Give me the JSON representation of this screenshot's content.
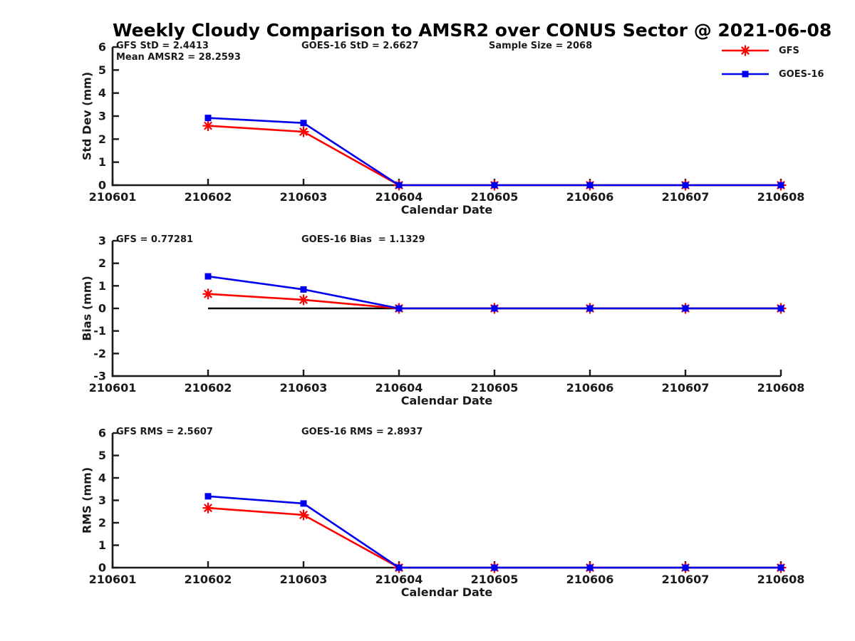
{
  "title": "Weekly Cloudy Comparison to AMSR2 over CONUS Sector @ 2021-06-08",
  "colors": {
    "gfs": "#ff0000",
    "goes16": "#0000ee",
    "axis": "#1a1a1a",
    "zero_line": "#000000"
  },
  "legend": {
    "position": "top-right",
    "items": [
      {
        "label": "GFS",
        "color": "#ff0000",
        "marker": "asterisk"
      },
      {
        "label": "GOES-16",
        "color": "#0000ee",
        "marker": "square"
      }
    ]
  },
  "chart_data": [
    {
      "type": "line",
      "name": "std-dev",
      "title": "",
      "xlabel": "Calendar Date",
      "ylabel": "Std Dev (mm)",
      "ylim": [
        0,
        6
      ],
      "yticks": [
        0,
        1,
        2,
        3,
        4,
        5,
        6
      ],
      "grid": false,
      "categories": [
        "210601",
        "210602",
        "210603",
        "210604",
        "210605",
        "210606",
        "210607",
        "210608"
      ],
      "series": [
        {
          "name": "GFS",
          "color": "#ff0000",
          "marker": "asterisk",
          "x_index": [
            1,
            2,
            3,
            4,
            5,
            6,
            7
          ],
          "values": [
            2.58,
            2.32,
            0,
            0,
            0,
            0,
            0
          ]
        },
        {
          "name": "GOES-16",
          "color": "#0000ee",
          "marker": "square",
          "x_index": [
            1,
            2,
            3,
            4,
            5,
            6,
            7
          ],
          "values": [
            2.92,
            2.7,
            0,
            0,
            0,
            0,
            0
          ]
        }
      ],
      "annotations": [
        {
          "text": "GFS StD = 2.4413",
          "col": 0,
          "row": 0
        },
        {
          "text": "Mean AMSR2 = 28.2593",
          "col": 0,
          "row": 1
        },
        {
          "text": "GOES-16 StD = 2.6627",
          "col": 1,
          "row": 0
        },
        {
          "text": "Sample Size = 2068",
          "col": 2,
          "row": 0
        }
      ],
      "zero_line": false
    },
    {
      "type": "line",
      "name": "bias",
      "title": "",
      "xlabel": "Calendar Date",
      "ylabel": "Bias (mm)",
      "ylim": [
        -3,
        3
      ],
      "yticks": [
        -3,
        -2,
        -1,
        0,
        1,
        2,
        3
      ],
      "grid": false,
      "categories": [
        "210601",
        "210602",
        "210603",
        "210604",
        "210605",
        "210606",
        "210607",
        "210608"
      ],
      "series": [
        {
          "name": "GFS",
          "color": "#ff0000",
          "marker": "asterisk",
          "x_index": [
            1,
            2,
            3,
            4,
            5,
            6,
            7
          ],
          "values": [
            0.64,
            0.38,
            0,
            0,
            0,
            0,
            0
          ]
        },
        {
          "name": "GOES-16",
          "color": "#0000ee",
          "marker": "square",
          "x_index": [
            1,
            2,
            3,
            4,
            5,
            6,
            7
          ],
          "values": [
            1.42,
            0.84,
            0,
            0,
            0,
            0,
            0
          ]
        }
      ],
      "annotations": [
        {
          "text": "GFS = 0.77281",
          "col": 0,
          "row": 0
        },
        {
          "text": "GOES-16 Bias  = 1.1329",
          "col": 1,
          "row": 0
        }
      ],
      "zero_line": true
    },
    {
      "type": "line",
      "name": "rms",
      "title": "",
      "xlabel": "Calendar Date",
      "ylabel": "RMS (mm)",
      "ylim": [
        0,
        6
      ],
      "yticks": [
        0,
        1,
        2,
        3,
        4,
        5,
        6
      ],
      "grid": false,
      "categories": [
        "210601",
        "210602",
        "210603",
        "210604",
        "210605",
        "210606",
        "210607",
        "210608"
      ],
      "series": [
        {
          "name": "GFS",
          "color": "#ff0000",
          "marker": "asterisk",
          "x_index": [
            1,
            2,
            3,
            4,
            5,
            6,
            7
          ],
          "values": [
            2.66,
            2.35,
            0,
            0,
            0,
            0,
            0
          ]
        },
        {
          "name": "GOES-16",
          "color": "#0000ee",
          "marker": "square",
          "x_index": [
            1,
            2,
            3,
            4,
            5,
            6,
            7
          ],
          "values": [
            3.18,
            2.86,
            0,
            0,
            0,
            0,
            0
          ]
        }
      ],
      "annotations": [
        {
          "text": "GFS RMS = 2.5607",
          "col": 0,
          "row": 0
        },
        {
          "text": "GOES-16 RMS = 2.8937",
          "col": 1,
          "row": 0
        }
      ],
      "zero_line": false
    }
  ]
}
